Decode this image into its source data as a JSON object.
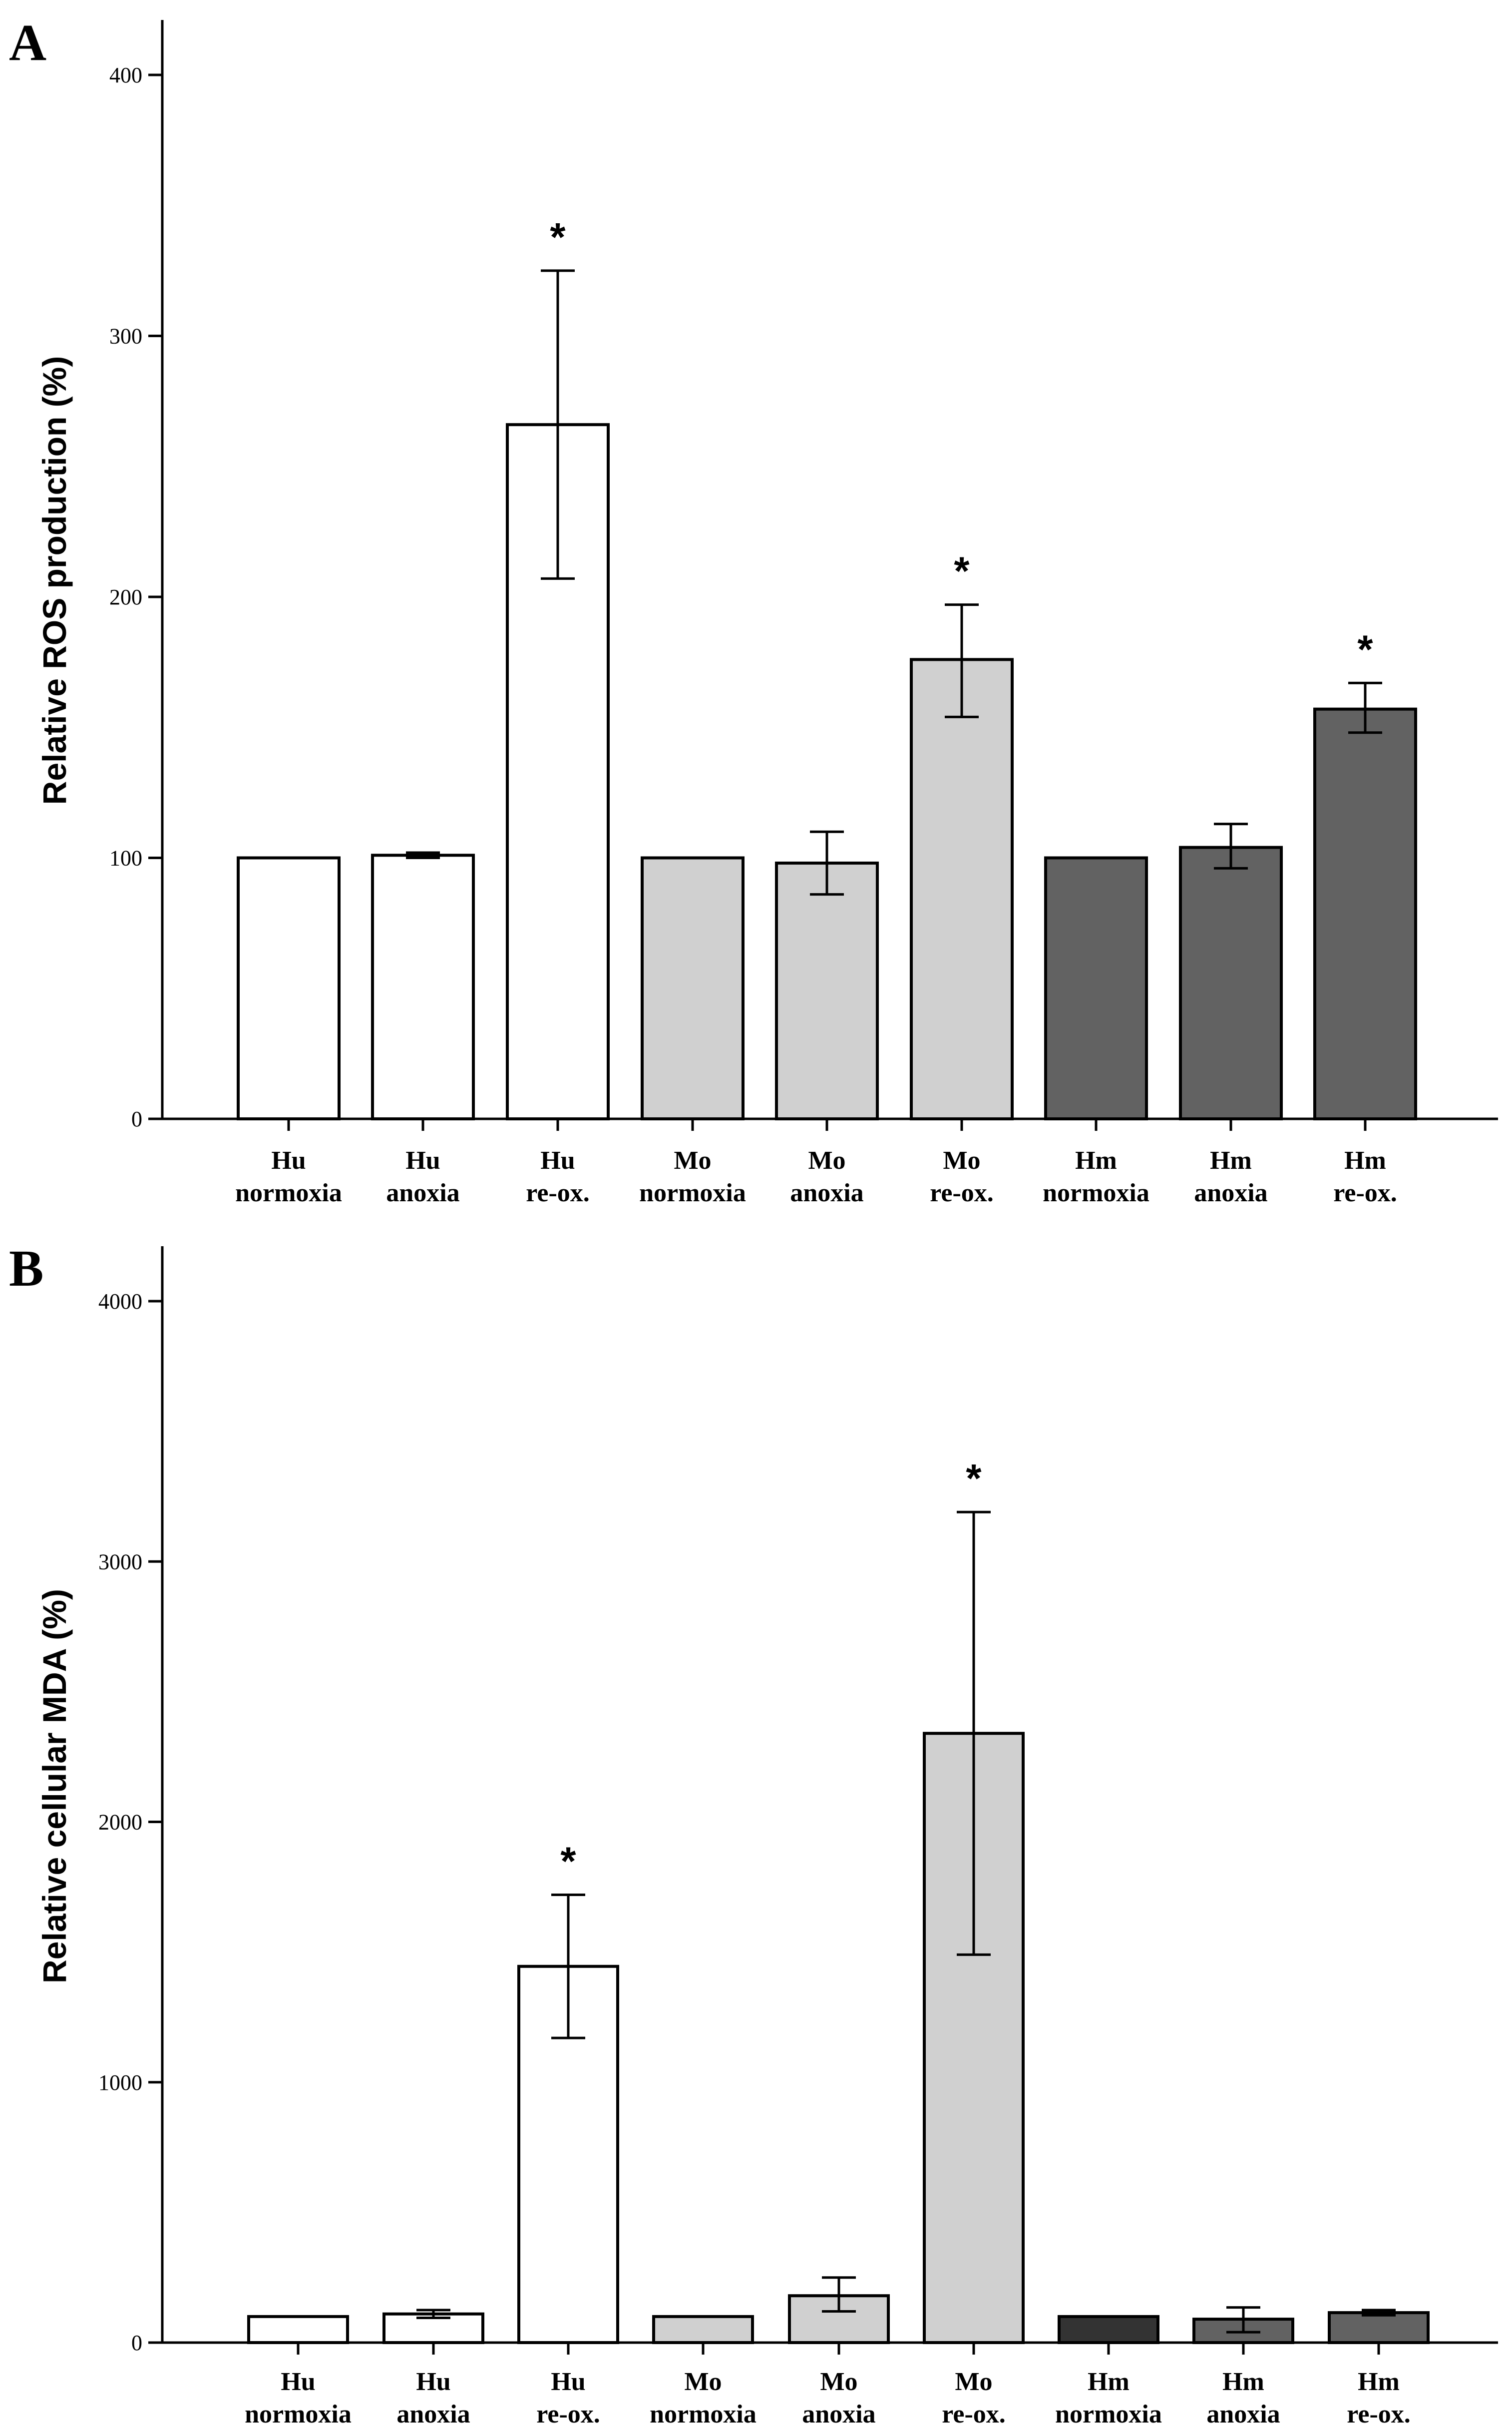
{
  "chart_data": [
    {
      "panel": "A",
      "type": "bar",
      "ylabel": "Relative ROS production (%)",
      "ylim": [
        0,
        400
      ],
      "yticks": [
        0,
        100,
        200,
        300,
        400
      ],
      "categories": [
        {
          "group": "Hu",
          "condition": "normoxia"
        },
        {
          "group": "Hu",
          "condition": "anoxia"
        },
        {
          "group": "Hu",
          "condition": "re-ox."
        },
        {
          "group": "Mo",
          "condition": "normoxia"
        },
        {
          "group": "Mo",
          "condition": "anoxia"
        },
        {
          "group": "Mo",
          "condition": "re-ox."
        },
        {
          "group": "Hm",
          "condition": "normoxia"
        },
        {
          "group": "Hm",
          "condition": "anoxia"
        },
        {
          "group": "Hm",
          "condition": "re-ox."
        }
      ],
      "values": [
        100,
        101,
        266,
        100,
        98,
        176,
        100,
        104,
        157
      ],
      "error_low": [
        100,
        100,
        207,
        100,
        86,
        154,
        100,
        96,
        148
      ],
      "error_high": [
        100,
        102,
        325,
        100,
        110,
        197,
        100,
        113,
        167
      ],
      "significance": [
        "",
        "",
        "*",
        "",
        "",
        "*",
        "",
        "",
        "*"
      ],
      "group_colors": {
        "Hu": "#ffffff",
        "Mo": "#d0d0d0",
        "Hm": "#626262"
      },
      "grid": false
    },
    {
      "panel": "B",
      "type": "bar",
      "ylabel": "Relative cellular MDA (%)",
      "ylim": [
        0,
        4000
      ],
      "yticks": [
        0,
        1000,
        2000,
        3000,
        4000
      ],
      "categories": [
        {
          "group": "Hu",
          "condition": "normoxia"
        },
        {
          "group": "Hu",
          "condition": "anoxia"
        },
        {
          "group": "Hu",
          "condition": "re-ox."
        },
        {
          "group": "Mo",
          "condition": "normoxia"
        },
        {
          "group": "Mo",
          "condition": "anoxia"
        },
        {
          "group": "Mo",
          "condition": "re-ox."
        },
        {
          "group": "Hm",
          "condition": "normoxia"
        },
        {
          "group": "Hm",
          "condition": "anoxia"
        },
        {
          "group": "Hm",
          "condition": "re-ox."
        }
      ],
      "values": [
        100,
        110,
        1445,
        100,
        180,
        2340,
        100,
        90,
        115
      ],
      "error_low": [
        100,
        95,
        1170,
        100,
        120,
        1490,
        100,
        40,
        105
      ],
      "error_high": [
        100,
        125,
        1720,
        100,
        250,
        3190,
        100,
        135,
        125
      ],
      "significance": [
        "",
        "",
        "*",
        "",
        "",
        "*",
        "",
        "",
        ""
      ],
      "bar_colors": [
        "#ffffff",
        "#ffffff",
        "#ffffff",
        "#d0d0d0",
        "#d0d0d0",
        "#d0d0d0",
        "#333333",
        "#626262",
        "#626262"
      ],
      "grid": false
    }
  ]
}
